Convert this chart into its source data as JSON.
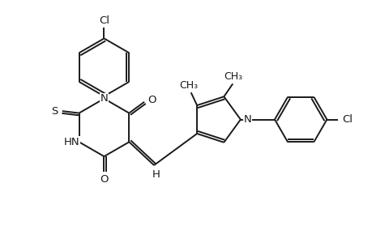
{
  "bg_color": "#ffffff",
  "line_color": "#1a1a1a",
  "line_width": 1.4,
  "font_size": 9.5,
  "fig_width": 4.6,
  "fig_height": 3.0,
  "dpi": 100,
  "xlim": [
    0,
    9.2
  ],
  "ylim": [
    0,
    6.0
  ]
}
